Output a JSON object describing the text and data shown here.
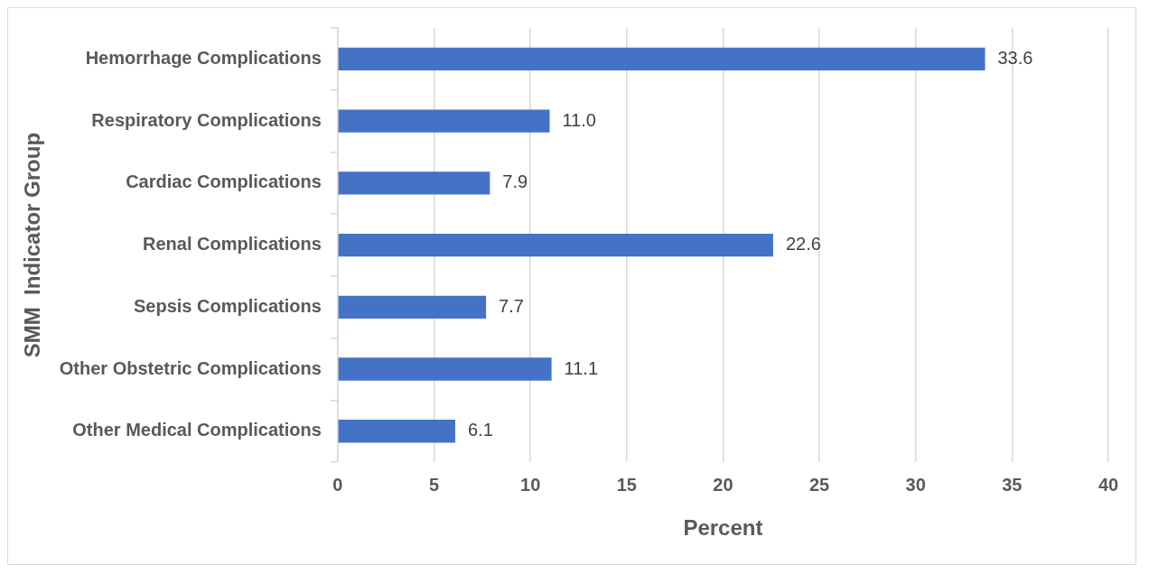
{
  "chart_data": {
    "type": "bar",
    "orientation": "horizontal",
    "xlabel": "Percent",
    "ylabel": "SMM  Indicator Group",
    "categories": [
      "Hemorrhage Complications",
      "Respiratory Complications",
      "Cardiac Complications",
      "Renal Complications",
      "Sepsis Complications",
      "Other Obstetric Complications",
      "Other Medical Complications"
    ],
    "values": [
      33.6,
      11.0,
      7.9,
      22.6,
      7.7,
      11.1,
      6.1
    ],
    "value_labels": [
      "33.6",
      "11.0",
      "7.9",
      "22.6",
      "7.7",
      "11.1",
      "6.1"
    ],
    "color": "#4472c4",
    "xlim": [
      0,
      40
    ],
    "xticks": [
      0,
      5,
      10,
      15,
      20,
      25,
      30,
      35,
      40
    ],
    "grid": "x",
    "legend": false
  }
}
